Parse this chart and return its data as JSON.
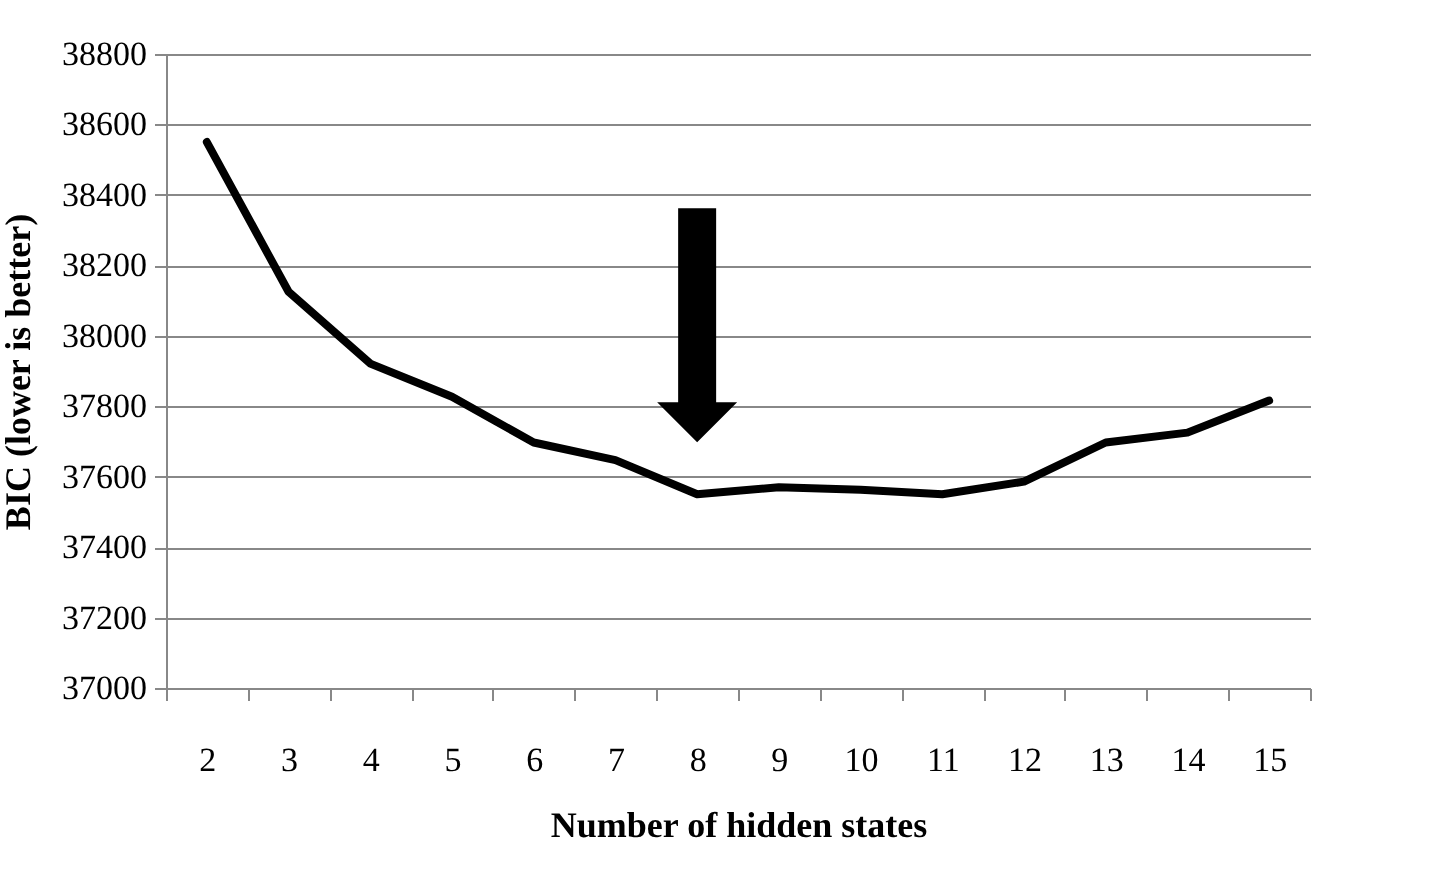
{
  "chart_data": {
    "type": "line",
    "xlabel": "Number of hidden states",
    "ylabel": "BIC (lower is better)",
    "categories": [
      "2",
      "3",
      "4",
      "5",
      "6",
      "7",
      "8",
      "9",
      "10",
      "11",
      "12",
      "13",
      "14",
      "15"
    ],
    "series": [
      {
        "color": "#000000",
        "values": [
          38550,
          38125,
          37921,
          37827,
          37697,
          37647,
          37550,
          37570,
          37563,
          37550,
          37586,
          37697,
          37725,
          37816
        ]
      }
    ],
    "ylim": [
      37000,
      38800
    ],
    "yticks": [
      37000,
      37200,
      37400,
      37600,
      37800,
      38000,
      38200,
      38400,
      38600,
      38800
    ],
    "grid": "y",
    "marker": "none",
    "line_style": "solid"
  }
}
